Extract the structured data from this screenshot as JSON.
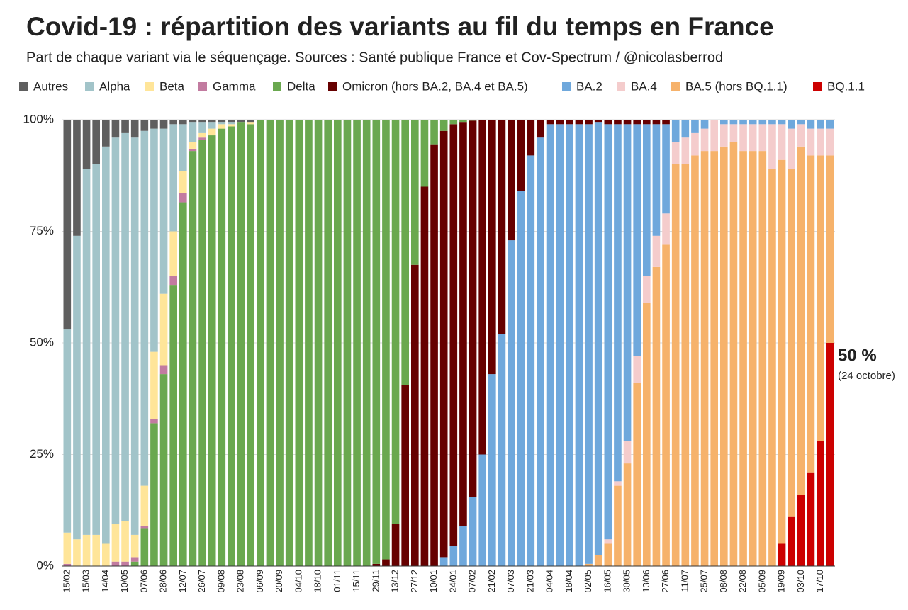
{
  "chart_data": {
    "type": "stacked_bar",
    "title": "Covid-19 : répartition des variants au fil du temps en France",
    "subtitle": "Part de chaque variant via le séquençage. Sources : Santé publique France et Cov-Spectrum / @nicolasberrod",
    "categories": [
      "15/02",
      null,
      "15/03",
      null,
      "14/04",
      null,
      "10/05",
      null,
      "07/06",
      null,
      "28/06",
      null,
      "12/07",
      null,
      "26/07",
      null,
      "09/08",
      null,
      "23/08",
      null,
      "06/09",
      null,
      "20/09",
      null,
      "04/10",
      null,
      "18/10",
      null,
      "01/11",
      null,
      "15/11",
      null,
      "29/11",
      null,
      "13/12",
      null,
      "27/12",
      null,
      "10/01",
      null,
      "24/01",
      null,
      "07/02",
      null,
      "21/02",
      null,
      "07/03",
      null,
      "21/03",
      null,
      "04/04",
      null,
      "18/04",
      null,
      "02/05",
      null,
      "16/05",
      null,
      "30/05",
      null,
      "13/06",
      null,
      "27/06",
      null,
      "11/07",
      null,
      "25/07",
      null,
      "08/08",
      null,
      "22/08",
      null,
      "05/09",
      null,
      "19/09",
      null,
      "03/10",
      null,
      "17/10",
      null
    ],
    "series": [
      {
        "name": "Autres",
        "color": "#5f5f5f",
        "values": [
          47,
          26,
          11,
          10,
          6,
          4,
          3,
          4,
          2.5,
          2,
          2,
          1,
          1,
          0.5,
          0.5,
          0.5,
          0.5,
          0.5,
          0.5,
          0.5,
          0,
          0,
          0,
          0,
          0,
          0,
          0,
          0,
          0,
          0,
          0,
          0,
          0,
          0,
          0,
          0,
          0,
          0,
          0,
          0,
          0,
          0,
          0,
          0,
          0,
          0,
          0,
          0,
          0,
          0,
          0,
          0,
          0,
          0,
          0,
          0,
          0,
          0,
          0,
          0,
          0,
          0,
          0,
          0,
          0,
          0,
          0,
          0,
          0,
          0,
          0,
          0,
          0,
          0,
          0,
          0,
          0,
          0,
          0,
          0
        ]
      },
      {
        "name": "Alpha",
        "color": "#a2c4c9",
        "values": [
          45.5,
          68,
          82,
          83,
          89,
          86.5,
          87,
          89,
          79.5,
          50,
          37,
          24,
          10.5,
          4.5,
          2.5,
          1.5,
          0.5,
          0.5,
          0,
          0,
          0,
          0,
          0,
          0,
          0,
          0,
          0,
          0,
          0,
          0,
          0,
          0,
          0,
          0,
          0,
          0,
          0,
          0,
          0,
          0,
          0,
          0,
          0,
          0,
          0,
          0,
          0,
          0,
          0,
          0,
          0,
          0,
          0,
          0,
          0,
          0,
          0,
          0,
          0,
          0,
          0,
          0,
          0,
          0,
          0,
          0,
          0,
          0,
          0,
          0,
          0,
          0,
          0,
          0,
          0,
          0,
          0,
          0,
          0,
          0
        ]
      },
      {
        "name": "Beta",
        "color": "#ffe599",
        "values": [
          7,
          6,
          7,
          7,
          5,
          8.5,
          9,
          5,
          9,
          15,
          16,
          10,
          5,
          1.5,
          1,
          1.5,
          1,
          0.5,
          0,
          0.5,
          0,
          0,
          0,
          0,
          0,
          0,
          0,
          0,
          0,
          0,
          0,
          0,
          0,
          0,
          0,
          0,
          0,
          0,
          0,
          0,
          0,
          0,
          0,
          0,
          0,
          0,
          0,
          0,
          0,
          0,
          0,
          0,
          0,
          0,
          0,
          0,
          0,
          0,
          0,
          0,
          0,
          0,
          0,
          0,
          0,
          0,
          0,
          0,
          0,
          0,
          0,
          0,
          0,
          0,
          0,
          0,
          0,
          0,
          0,
          0
        ]
      },
      {
        "name": "Gamma",
        "color": "#c27ba0",
        "values": [
          0.5,
          0,
          0,
          0,
          0,
          1,
          1,
          1,
          0.5,
          1,
          2,
          2,
          2,
          0.5,
          0.5,
          0,
          0,
          0,
          0,
          0,
          0,
          0,
          0,
          0,
          0,
          0,
          0,
          0,
          0,
          0,
          0,
          0,
          0,
          0,
          0,
          0,
          0,
          0,
          0,
          0,
          0,
          0,
          0,
          0,
          0,
          0,
          0,
          0,
          0,
          0,
          0,
          0,
          0,
          0,
          0,
          0,
          0,
          0,
          0,
          0,
          0,
          0,
          0,
          0,
          0,
          0,
          0,
          0,
          0,
          0,
          0,
          0,
          0,
          0,
          0,
          0,
          0,
          0,
          0,
          0
        ]
      },
      {
        "name": "Delta",
        "color": "#6aa84f",
        "values": [
          0,
          0,
          0,
          0,
          0,
          0,
          0,
          1,
          8.5,
          32,
          43,
          63,
          81.5,
          93,
          95.5,
          96.5,
          98,
          98.5,
          99.5,
          99,
          100,
          100,
          100,
          100,
          100,
          100,
          100,
          100,
          100,
          100,
          100,
          100,
          99.5,
          98.5,
          90.5,
          59.5,
          32.5,
          15,
          5.5,
          2.5,
          1,
          0.5,
          0.2,
          0,
          0,
          0,
          0,
          0,
          0,
          0,
          0,
          0,
          0,
          0,
          0,
          0,
          0,
          0,
          0,
          0,
          0,
          0,
          0,
          0,
          0,
          0,
          0,
          0,
          0,
          0,
          0,
          0,
          0,
          0,
          0,
          0,
          0,
          0,
          0,
          0
        ]
      },
      {
        "name": "Omicron (hors BA.2, BA.4 et BA.5)",
        "color": "#660000",
        "values": [
          0,
          0,
          0,
          0,
          0,
          0,
          0,
          0,
          0,
          0,
          0,
          0,
          0,
          0,
          0,
          0,
          0,
          0,
          0,
          0,
          0,
          0,
          0,
          0,
          0,
          0,
          0,
          0,
          0,
          0,
          0,
          0,
          0.5,
          1.5,
          9.5,
          40.5,
          67.5,
          85,
          94.5,
          95.5,
          94.5,
          90.5,
          84.3,
          75,
          57,
          48,
          27,
          16,
          8,
          4,
          1,
          1,
          1,
          1,
          1,
          0.5,
          1,
          1,
          1,
          1,
          1,
          1,
          1,
          0,
          0,
          0,
          0,
          0,
          0,
          0,
          0,
          0,
          0,
          0,
          0,
          0,
          0,
          0,
          0,
          0
        ]
      },
      {
        "name": "BA.2",
        "color": "#6fa8dc",
        "values": [
          0,
          0,
          0,
          0,
          0,
          0,
          0,
          0,
          0,
          0,
          0,
          0,
          0,
          0,
          0,
          0,
          0,
          0,
          0,
          0,
          0,
          0,
          0,
          0,
          0,
          0,
          0,
          0,
          0,
          0,
          0,
          0,
          0,
          0,
          0,
          0,
          0,
          0,
          0,
          2,
          4.5,
          9,
          15.5,
          25,
          43,
          52,
          73,
          84,
          92,
          96,
          99,
          99,
          99,
          99,
          98.5,
          97,
          93,
          80,
          71,
          52,
          34,
          25,
          20,
          5,
          4,
          3,
          2,
          0,
          1,
          1,
          1,
          1,
          1,
          1,
          1,
          2,
          1,
          2,
          2,
          2
        ]
      },
      {
        "name": "BA.4",
        "color": "#f4cccc",
        "values": [
          0,
          0,
          0,
          0,
          0,
          0,
          0,
          0,
          0,
          0,
          0,
          0,
          0,
          0,
          0,
          0,
          0,
          0,
          0,
          0,
          0,
          0,
          0,
          0,
          0,
          0,
          0,
          0,
          0,
          0,
          0,
          0,
          0,
          0,
          0,
          0,
          0,
          0,
          0,
          0,
          0,
          0,
          0,
          0,
          0,
          0,
          0,
          0,
          0,
          0,
          0,
          0,
          0,
          0,
          0,
          0,
          1,
          1,
          5,
          6,
          6,
          7,
          7,
          5,
          6,
          5,
          5,
          7,
          5,
          4,
          6,
          6,
          6,
          10,
          8,
          9,
          5,
          6,
          6,
          6
        ]
      },
      {
        "name": "BA.5 (hors BQ.1.1)",
        "color": "#f6b26b",
        "values": [
          0,
          0,
          0,
          0,
          0,
          0,
          0,
          0,
          0,
          0,
          0,
          0,
          0,
          0,
          0,
          0,
          0,
          0,
          0,
          0,
          0,
          0,
          0,
          0,
          0,
          0,
          0,
          0,
          0,
          0,
          0,
          0,
          0,
          0,
          0,
          0,
          0,
          0,
          0,
          0,
          0,
          0,
          0,
          0,
          0,
          0,
          0,
          0,
          0,
          0,
          0,
          0,
          0,
          0,
          0.5,
          2.5,
          5,
          18,
          23,
          41,
          59,
          67,
          72,
          90,
          90,
          92,
          93,
          93,
          94,
          95,
          93,
          93,
          93,
          89,
          86,
          78,
          78,
          71,
          64,
          42
        ]
      },
      {
        "name": "BQ.1.1",
        "color": "#cc0000",
        "values": [
          0,
          0,
          0,
          0,
          0,
          0,
          0,
          0,
          0,
          0,
          0,
          0,
          0,
          0,
          0,
          0,
          0,
          0,
          0,
          0,
          0,
          0,
          0,
          0,
          0,
          0,
          0,
          0,
          0,
          0,
          0,
          0,
          0,
          0,
          0,
          0,
          0,
          0,
          0,
          0,
          0,
          0,
          0,
          0,
          0,
          0,
          0,
          0,
          0,
          0,
          0,
          0,
          0,
          0,
          0,
          0,
          0,
          0,
          0,
          0,
          0,
          0,
          0,
          0,
          0,
          0,
          0,
          0,
          0,
          0,
          0,
          0,
          0,
          0,
          5,
          11,
          16,
          21,
          28,
          50
        ]
      }
    ],
    "ylim": [
      0,
      100
    ],
    "yticks": [
      {
        "value": 0,
        "label": "0%"
      },
      {
        "value": 25,
        "label": "25%"
      },
      {
        "value": 50,
        "label": "50%"
      },
      {
        "value": 75,
        "label": "75%"
      },
      {
        "value": 100,
        "label": "100%"
      }
    ],
    "grid": true,
    "annotations": [
      {
        "text": "50 %",
        "color": "#cc0000"
      },
      {
        "text": "(24 octobre)",
        "color": "#cc0000"
      }
    ]
  }
}
